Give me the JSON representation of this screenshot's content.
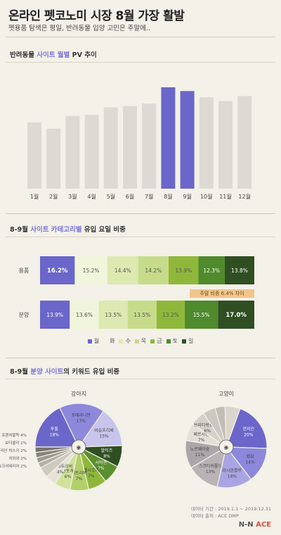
{
  "header": {
    "title": "온라인 펫코노미 시장 8월 가장 활발",
    "subtitle": "펫용품 탐색은 평일, 반려동물 입양 고민은 주말에.."
  },
  "section1": {
    "title_prefix": "반려동물 ",
    "title_hl": "사이트 월별",
    "title_suffix": " PV 추이"
  },
  "section2": {
    "title_prefix": "8-9월 ",
    "title_hl": "사이트 카테고리별",
    "title_suffix": " 유입 요일 비중"
  },
  "section3": {
    "title_prefix": "8-9월 ",
    "title_hl": "분양 사이트",
    "title_suffix": "의 키워드 유입 비중"
  },
  "chart_data": [
    {
      "type": "bar",
      "categories": [
        "1월",
        "2월",
        "3월",
        "4월",
        "5월",
        "6월",
        "7월",
        "8월",
        "9월",
        "10월",
        "11월",
        "12월"
      ],
      "values": [
        53,
        48,
        58,
        59,
        65,
        66,
        68,
        81,
        78,
        73,
        70,
        74
      ],
      "highlight": [
        7,
        8
      ],
      "colors": {
        "normal": "#dddad3",
        "highlight": "#6b66c9"
      }
    },
    {
      "type": "bar",
      "stacked": true,
      "categories": [
        "용품",
        "분양"
      ],
      "series": [
        {
          "name": "월",
          "color": "#6b66c9",
          "values": [
            16.2,
            13.9
          ]
        },
        {
          "name": "화",
          "color": "#f0f5dc",
          "values": [
            15.2,
            13.6
          ]
        },
        {
          "name": "수",
          "color": "#dde9b0",
          "values": [
            14.4,
            13.5
          ]
        },
        {
          "name": "목",
          "color": "#c7dc8a",
          "values": [
            14.2,
            13.5
          ]
        },
        {
          "name": "금",
          "color": "#8fb83a",
          "values": [
            13.9,
            13.2
          ]
        },
        {
          "name": "토",
          "color": "#4f8a2c",
          "values": [
            12.3,
            15.5
          ]
        },
        {
          "name": "일",
          "color": "#2f4f22",
          "values": [
            13.8,
            17.0
          ]
        }
      ],
      "annotation": "주말 비중 6.4% 차이"
    },
    {
      "type": "pie",
      "title": "강아지",
      "labels": [
        "푸들",
        "포메라니안",
        "비숑프리제",
        "말티즈",
        "시바견",
        "웰시코기",
        "리트리버",
        "진돗개",
        "골든 리트리버",
        "프렌치불독",
        "보더콜리",
        "시베리안 허스키",
        "치와와",
        "요크셔테리어"
      ],
      "values": [
        18,
        17,
        15,
        8,
        7,
        7,
        7,
        6,
        4,
        4,
        2,
        2,
        2,
        2
      ]
    },
    {
      "type": "pie",
      "title": "고양이",
      "labels": [
        "먼치킨",
        "뱅갈",
        "러시안블루",
        "스코티쉬폴드",
        "노르웨이숲",
        "페르시안",
        "브리티쉬숏헤어",
        "샴",
        "렉돌",
        "아비시니안"
      ],
      "values": [
        20,
        14,
        14,
        13,
        11,
        7,
        6,
        5,
        4,
        6
      ]
    }
  ],
  "footer": {
    "period": "데이터 기간 : 2019.1.1 ~ 2019.12.31",
    "source": "데이터 출처 : ACE DMP",
    "brand_left": "N-N ",
    "brand_right": "ACE"
  }
}
